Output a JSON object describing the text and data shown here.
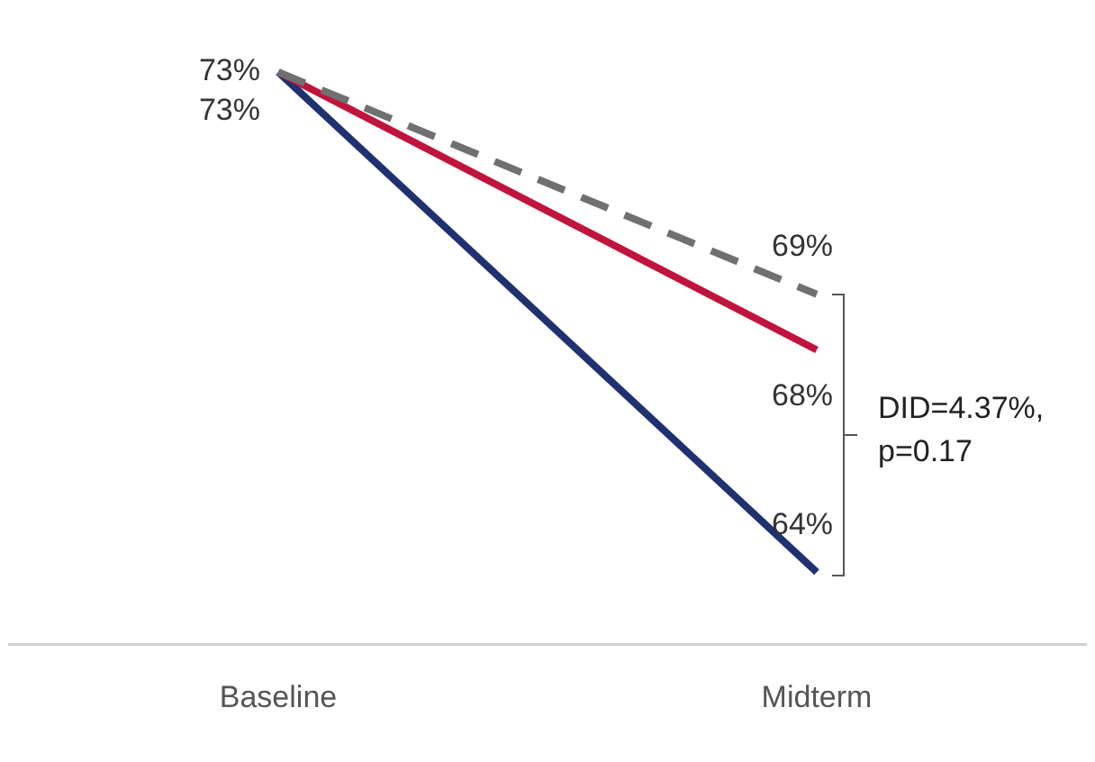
{
  "chart_data": {
    "type": "line",
    "categories": [
      "Baseline",
      "Midterm"
    ],
    "series": [
      {
        "color": "#707070",
        "values": [
          73,
          69
        ],
        "value_labels": [
          null,
          "69%"
        ],
        "line_style": "dashed"
      },
      {
        "color": "#c0143c",
        "values": [
          73,
          68
        ],
        "value_labels": [
          "73%",
          "68%"
        ],
        "line_style": "solid"
      },
      {
        "color": "#1f3170",
        "values": [
          73,
          64
        ],
        "value_labels": [
          "73%",
          "64%"
        ],
        "line_style": "solid"
      }
    ],
    "legend": false,
    "grid": false,
    "marker": "none",
    "annotations": [
      "DID=4.37%, p=0.17"
    ]
  }
}
